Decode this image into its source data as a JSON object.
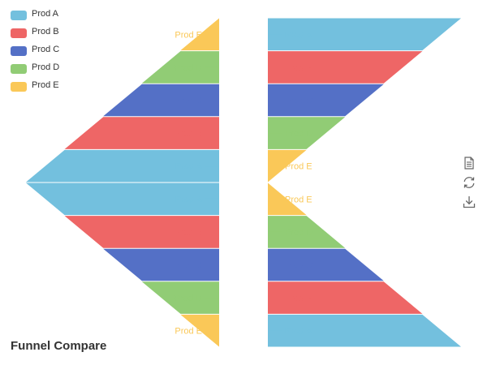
{
  "title": "Funnel Compare",
  "legend": [
    {
      "label": "Prod A",
      "color": "#73c0de"
    },
    {
      "label": "Prod B",
      "color": "#ee6666"
    },
    {
      "label": "Prod C",
      "color": "#5470c6"
    },
    {
      "label": "Prod D",
      "color": "#91cc75"
    },
    {
      "label": "Prod E",
      "color": "#fac858"
    }
  ],
  "toolbox": [
    "data-view-icon",
    "restore-icon",
    "save-image-icon"
  ],
  "chart_data": {
    "type": "funnel",
    "title": "Funnel Compare",
    "value_range": [
      0,
      100
    ],
    "funnels": [
      {
        "position": "left-top",
        "orient": "horizontal",
        "sort": "ascending",
        "data": [
          {
            "name": "Prod E",
            "value": 20
          },
          {
            "name": "Prod D",
            "value": 40
          },
          {
            "name": "Prod C",
            "value": 60
          },
          {
            "name": "Prod B",
            "value": 80
          },
          {
            "name": "Prod A",
            "value": 100
          }
        ]
      },
      {
        "position": "left-bottom",
        "orient": "horizontal",
        "sort": "descending",
        "data": [
          {
            "name": "Prod A",
            "value": 100
          },
          {
            "name": "Prod B",
            "value": 80
          },
          {
            "name": "Prod C",
            "value": 60
          },
          {
            "name": "Prod D",
            "value": 40
          },
          {
            "name": "Prod E",
            "value": 20
          }
        ]
      },
      {
        "position": "right-top",
        "orient": "horizontal",
        "sort": "descending",
        "data": [
          {
            "name": "Prod A",
            "value": 100
          },
          {
            "name": "Prod B",
            "value": 80
          },
          {
            "name": "Prod C",
            "value": 60
          },
          {
            "name": "Prod D",
            "value": 40
          },
          {
            "name": "Prod E",
            "value": 20
          }
        ]
      },
      {
        "position": "right-bottom",
        "orient": "horizontal",
        "sort": "ascending",
        "data": [
          {
            "name": "Prod E",
            "value": 20
          },
          {
            "name": "Prod D",
            "value": 40
          },
          {
            "name": "Prod C",
            "value": 60
          },
          {
            "name": "Prod B",
            "value": 80
          },
          {
            "name": "Prod A",
            "value": 100
          }
        ]
      }
    ]
  }
}
